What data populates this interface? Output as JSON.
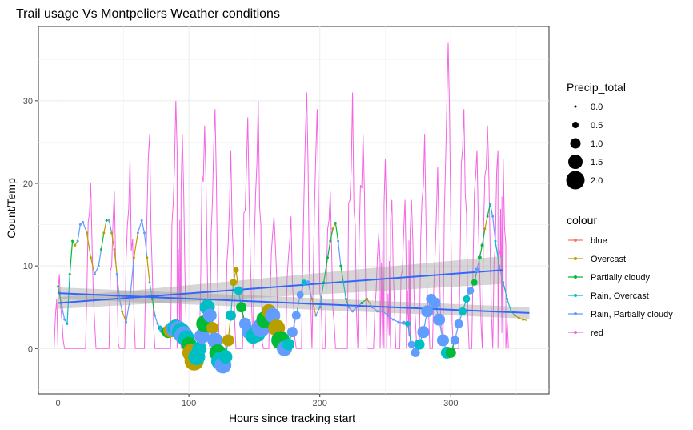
{
  "chart_data": {
    "type": "line",
    "title": "Trail usage Vs Montpeliers Weather conditions",
    "xlabel": "Hours since tracking start",
    "ylabel": "Count/Temp",
    "xlim": [
      -15,
      375
    ],
    "ylim": [
      -5.5,
      39
    ],
    "x_ticks": [
      0,
      100,
      200,
      300
    ],
    "y_ticks": [
      0,
      10,
      20,
      30
    ],
    "grid": true,
    "legend_size": {
      "title": "Precip_total",
      "labels": [
        "0.0",
        "0.5",
        "1.0",
        "1.5",
        "2.0"
      ],
      "values": [
        0.0,
        0.5,
        1.0,
        1.5,
        2.0
      ]
    },
    "legend_colour": {
      "title": "colour",
      "entries": [
        {
          "label": "blue",
          "color": "#F8766D"
        },
        {
          "label": "Overcast",
          "color": "#B79F00"
        },
        {
          "label": "Partially cloudy",
          "color": "#00BA38"
        },
        {
          "label": "Rain, Overcast",
          "color": "#00BFC4"
        },
        {
          "label": "Rain, Partially cloudy",
          "color": "#619CFF"
        },
        {
          "label": "red",
          "color": "#F564E3"
        }
      ]
    },
    "colors": {
      "blue": "#F8766D",
      "Overcast": "#B79F00",
      "Partially cloudy": "#00BA38",
      "Rain, Overcast": "#00BFC4",
      "Rain, Partially cloudy": "#619CFF",
      "red": "#F564E3",
      "smooth": "#3366FF",
      "ribbon": "#999999"
    },
    "count_series": {
      "name": "red",
      "peaks": [
        [
          1,
          9
        ],
        [
          25,
          20
        ],
        [
          43,
          19
        ],
        [
          55,
          23
        ],
        [
          70,
          26
        ],
        [
          90,
          30
        ],
        [
          95,
          26
        ],
        [
          112,
          27
        ],
        [
          120,
          29
        ],
        [
          132,
          24
        ],
        [
          145,
          28
        ],
        [
          153,
          30
        ],
        [
          165,
          16
        ],
        [
          178,
          16
        ],
        [
          190,
          31
        ],
        [
          198,
          29
        ],
        [
          208,
          19
        ],
        [
          225,
          31
        ],
        [
          233,
          26
        ],
        [
          245,
          14
        ],
        [
          250,
          23
        ],
        [
          255,
          18
        ],
        [
          265,
          18
        ],
        [
          270,
          18
        ],
        [
          280,
          26
        ],
        [
          290,
          22
        ],
        [
          298,
          37
        ],
        [
          310,
          29
        ],
        [
          320,
          24
        ],
        [
          328,
          27
        ],
        [
          336,
          24
        ],
        [
          340,
          23
        ]
      ]
    },
    "temp_series": {
      "x": [
        0,
        3,
        5,
        7,
        9,
        11,
        13,
        15,
        17,
        19,
        22,
        25,
        28,
        31,
        33,
        35,
        37,
        39,
        41,
        43,
        45,
        47,
        49,
        52,
        55,
        58,
        61,
        64,
        66,
        68,
        70,
        72,
        74,
        76,
        78,
        80,
        82,
        84,
        86,
        88,
        90,
        92,
        94,
        96,
        98,
        100,
        102,
        104,
        106,
        108,
        110,
        112,
        114,
        116,
        118,
        120,
        122,
        124,
        126,
        128,
        130,
        132,
        134,
        136,
        138,
        140,
        143,
        146,
        149,
        152,
        155,
        158,
        161,
        164,
        167,
        170,
        173,
        176,
        179,
        182,
        185,
        188,
        191,
        194,
        197,
        200,
        203,
        206,
        208,
        210,
        212,
        214,
        216,
        218,
        220,
        222,
        225,
        228,
        232,
        236,
        240,
        244,
        248,
        252,
        256,
        260,
        264,
        267,
        270,
        273,
        276,
        279,
        282,
        285,
        288,
        291,
        294,
        297,
        300,
        303,
        306,
        309,
        312,
        315,
        318,
        320,
        322,
        324,
        326,
        328,
        330,
        332,
        334,
        337,
        340,
        343,
        346,
        349,
        352,
        355,
        358,
        360
      ],
      "y": [
        7.5,
        5,
        3.5,
        3,
        9,
        13,
        12.5,
        13,
        15,
        15.3,
        14,
        11,
        9,
        10,
        12,
        14,
        15.5,
        15.5,
        14,
        12,
        9,
        6,
        4.5,
        3.2,
        6,
        11,
        14,
        15.5,
        14,
        11,
        8,
        6,
        4,
        3,
        2.5,
        2.2,
        2.1,
        2,
        2.2,
        2.4,
        2.5,
        2.3,
        2,
        1.6,
        1.2,
        0.5,
        -0.5,
        -1.5,
        -1,
        0,
        1.5,
        3,
        5,
        4,
        2.5,
        1,
        -0.5,
        -1.5,
        -2,
        -1,
        1,
        4,
        8,
        9.5,
        7,
        5,
        3,
        2,
        1.5,
        1.8,
        2.5,
        3.5,
        4.5,
        4,
        2.5,
        1,
        0,
        0.5,
        2,
        4,
        6.5,
        8,
        8,
        6,
        4,
        5,
        8,
        11,
        13,
        14.5,
        15.2,
        13,
        10,
        8,
        6,
        5,
        4.5,
        5,
        5.5,
        6,
        5,
        4.5,
        4.5,
        4,
        3.5,
        3.2,
        3.1,
        3,
        0.5,
        -0.5,
        0.5,
        2,
        4.5,
        6,
        5.5,
        3.5,
        1,
        -0.5,
        -0.5,
        1,
        3,
        4.5,
        6,
        7,
        8,
        9.5,
        11,
        12.5,
        14.5,
        16,
        17.5,
        16,
        13,
        10,
        8,
        6,
        4.5,
        4,
        3.7,
        3.5,
        3.4,
        3.4
      ],
      "cond": [
        "PC",
        "RPC",
        "RPC",
        "RO",
        "PC",
        "PC",
        "O",
        "RPC",
        "RPC",
        "RPC",
        "O",
        "O",
        "RPC",
        "RPC",
        "PC",
        "O",
        "PC",
        "RPC",
        "O",
        "O",
        "RPC",
        "RPC",
        "O",
        "RPC",
        "RPC",
        "O",
        "RPC",
        "RPC",
        "RPC",
        "O",
        "RPC",
        "PC",
        "RPC",
        "RPC",
        "RO",
        "RPC",
        "PC",
        "PC",
        "O",
        "RPC",
        "RO",
        "RPC",
        "RO",
        "RPC",
        "RO",
        "PC",
        "O",
        "O",
        "RO",
        "RO",
        "RPC",
        "PC",
        "RO",
        "RPC",
        "O",
        "RPC",
        "PC",
        "RO",
        "RPC",
        "RO",
        "O",
        "RO",
        "O",
        "O",
        "RO",
        "PC",
        "RPC",
        "RPC",
        "RO",
        "RO",
        "RPC",
        "PC",
        "O",
        "RPC",
        "O",
        "PC",
        "RPC",
        "RO",
        "RPC",
        "RPC",
        "RPC",
        "RO",
        "RPC",
        "O",
        "RPC",
        "RO",
        "PC",
        "PC",
        "PC",
        "O",
        "PC",
        "RPC",
        "PC",
        "RO",
        "PC",
        "RPC",
        "RPC",
        "RPC",
        "PC",
        "O",
        "RPC",
        "RPC",
        "RPC",
        "RPC",
        "RPC",
        "RPC",
        "RPC",
        "RO",
        "RPC",
        "RPC",
        "RO",
        "RPC",
        "RPC",
        "RPC",
        "RPC",
        "RPC",
        "RPC",
        "RO",
        "PC",
        "RPC",
        "RPC",
        "RO",
        "RO",
        "RPC",
        "PC",
        "RPC",
        "PC",
        "PC",
        "O",
        "PC",
        "RO",
        "RPC",
        "RO",
        "RPC",
        "RO",
        "RO",
        "RO",
        "O",
        "O",
        "O"
      ],
      "precip": [
        0,
        0,
        0,
        0,
        0,
        0,
        0,
        0,
        0,
        0,
        0,
        0,
        0,
        0,
        0,
        0,
        0,
        0,
        0,
        0,
        0,
        0,
        0,
        0,
        0,
        0,
        0,
        0,
        0,
        0,
        0,
        0,
        0,
        0,
        0.3,
        0.5,
        0.8,
        1.2,
        1.5,
        1.6,
        1.8,
        1.9,
        2,
        2,
        1.8,
        1.6,
        2,
        2.1,
        1.8,
        1.5,
        1.6,
        1.8,
        1.6,
        1.4,
        1.2,
        1.6,
        1.8,
        2,
        1.8,
        1.4,
        1.2,
        1,
        0.6,
        0.4,
        0.8,
        1,
        1.2,
        1.5,
        1.6,
        1.8,
        2,
        1.8,
        1.5,
        1.6,
        1.8,
        2,
        1.6,
        1.2,
        1,
        0.8,
        0.6,
        0.4,
        0.2,
        0,
        0,
        0,
        0,
        0,
        0,
        0,
        0,
        0,
        0,
        0,
        0,
        0,
        0,
        0,
        0,
        0,
        0,
        0,
        0,
        0,
        0,
        0,
        0.2,
        0.4,
        0.6,
        0.8,
        1,
        1.2,
        1.2,
        1,
        1.1,
        1.2,
        1.2,
        1.2,
        1,
        0.8,
        0.8,
        0.7,
        0.6,
        0.6,
        0.5,
        0.3,
        0.2,
        0.1,
        0,
        0,
        0,
        0,
        0,
        0,
        0,
        0,
        0,
        0,
        0,
        0
      ]
    },
    "smooth_lines": [
      {
        "name": "red",
        "x": [
          0,
          340
        ],
        "y": [
          5.5,
          9.5
        ],
        "band_start": [
          4.8,
          6.2
        ],
        "band_end": [
          7.8,
          11.2
        ]
      },
      {
        "name": "temp",
        "x": [
          0,
          360
        ],
        "y": [
          6.7,
          4.3
        ],
        "band_start": [
          6.0,
          7.4
        ],
        "band_end": [
          3.6,
          5.0
        ]
      }
    ]
  }
}
